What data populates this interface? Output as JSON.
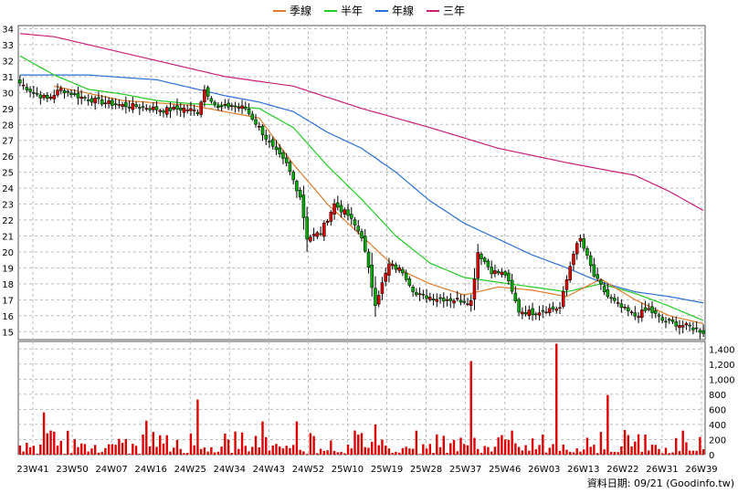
{
  "chart_data": [
    {
      "type": "candlestick",
      "legend": [
        {
          "name": "季線",
          "color": "#e07b2a"
        },
        {
          "name": "半年",
          "color": "#22cc22"
        },
        {
          "name": "年線",
          "color": "#2a6fd4"
        },
        {
          "name": "三年",
          "color": "#c8207a"
        }
      ],
      "y_ticks": [
        15,
        16,
        17,
        18,
        19,
        20,
        21,
        22,
        23,
        24,
        25,
        26,
        27,
        28,
        29,
        30,
        31,
        32,
        33,
        34
      ],
      "ylim": [
        14.5,
        34.2
      ],
      "x_labels": [
        "23W41",
        "23W50",
        "24W07",
        "24W16",
        "24W25",
        "24W34",
        "24W43",
        "24W52",
        "25W10",
        "25W19",
        "25W28",
        "25W37",
        "25W46",
        "26W03",
        "26W13",
        "26W22",
        "26W31",
        "26W39"
      ],
      "grid": true,
      "price_anchors": [
        [
          0,
          30.6
        ],
        [
          4,
          30.0
        ],
        [
          8,
          29.6
        ],
        [
          12,
          30.2
        ],
        [
          18,
          29.7
        ],
        [
          24,
          29.4
        ],
        [
          30,
          29.2
        ],
        [
          36,
          29.1
        ],
        [
          42,
          28.9
        ],
        [
          48,
          29.0
        ],
        [
          52,
          28.8
        ],
        [
          54,
          30.2
        ],
        [
          58,
          29.0
        ],
        [
          62,
          29.2
        ],
        [
          66,
          29.0
        ],
        [
          70,
          27.8
        ],
        [
          74,
          26.5
        ],
        [
          78,
          25.5
        ],
        [
          82,
          23.5
        ],
        [
          84,
          20.9
        ],
        [
          88,
          21.2
        ],
        [
          92,
          23.0
        ],
        [
          96,
          22.3
        ],
        [
          100,
          21.0
        ],
        [
          104,
          16.8
        ],
        [
          108,
          19.2
        ],
        [
          112,
          18.8
        ],
        [
          116,
          17.3
        ],
        [
          122,
          17.1
        ],
        [
          128,
          17.0
        ],
        [
          132,
          16.9
        ],
        [
          134,
          20.0
        ],
        [
          138,
          18.8
        ],
        [
          142,
          18.6
        ],
        [
          146,
          16.3
        ],
        [
          150,
          16.2
        ],
        [
          154,
          16.4
        ],
        [
          158,
          16.5
        ],
        [
          162,
          20.0
        ],
        [
          164,
          20.8
        ],
        [
          168,
          18.5
        ],
        [
          172,
          17.2
        ],
        [
          176,
          16.5
        ],
        [
          180,
          16.0
        ],
        [
          184,
          16.4
        ],
        [
          188,
          15.7
        ],
        [
          192,
          15.5
        ],
        [
          196,
          15.3
        ],
        [
          200,
          15.0
        ]
      ],
      "ma_quarter_anchors": [
        [
          10,
          30.4
        ],
        [
          30,
          29.5
        ],
        [
          50,
          29.2
        ],
        [
          70,
          28.4
        ],
        [
          80,
          25.5
        ],
        [
          90,
          23.0
        ],
        [
          100,
          21.0
        ],
        [
          110,
          19.0
        ],
        [
          120,
          18.0
        ],
        [
          130,
          17.3
        ],
        [
          140,
          17.8
        ],
        [
          150,
          17.6
        ],
        [
          160,
          17.2
        ],
        [
          170,
          18.3
        ],
        [
          180,
          17.0
        ],
        [
          190,
          16.0
        ],
        [
          200,
          15.5
        ]
      ],
      "ma_half_anchors": [
        [
          0,
          32.3
        ],
        [
          10,
          31.1
        ],
        [
          20,
          30.2
        ],
        [
          30,
          29.9
        ],
        [
          40,
          29.5
        ],
        [
          50,
          29.3
        ],
        [
          60,
          29.2
        ],
        [
          70,
          29.0
        ],
        [
          80,
          27.8
        ],
        [
          90,
          25.4
        ],
        [
          100,
          23.3
        ],
        [
          110,
          21.0
        ],
        [
          120,
          19.3
        ],
        [
          130,
          18.4
        ],
        [
          140,
          18.1
        ],
        [
          150,
          17.8
        ],
        [
          160,
          17.5
        ],
        [
          170,
          18.0
        ],
        [
          180,
          17.4
        ],
        [
          190,
          16.6
        ],
        [
          200,
          15.7
        ]
      ],
      "ma_year_anchors": [
        [
          0,
          31.1
        ],
        [
          20,
          31.1
        ],
        [
          40,
          30.8
        ],
        [
          60,
          29.8
        ],
        [
          70,
          29.4
        ],
        [
          80,
          28.8
        ],
        [
          90,
          27.5
        ],
        [
          100,
          26.5
        ],
        [
          110,
          25.0
        ],
        [
          120,
          23.2
        ],
        [
          130,
          21.8
        ],
        [
          140,
          20.8
        ],
        [
          150,
          19.8
        ],
        [
          160,
          19.0
        ],
        [
          170,
          18.1
        ],
        [
          180,
          17.5
        ],
        [
          190,
          17.2
        ],
        [
          200,
          16.8
        ]
      ],
      "ma_three_anchors": [
        [
          0,
          33.7
        ],
        [
          10,
          33.5
        ],
        [
          20,
          33.0
        ],
        [
          40,
          32.0
        ],
        [
          60,
          31.0
        ],
        [
          80,
          30.4
        ],
        [
          100,
          29.0
        ],
        [
          120,
          27.8
        ],
        [
          140,
          26.5
        ],
        [
          160,
          25.6
        ],
        [
          180,
          24.8
        ],
        [
          190,
          23.8
        ],
        [
          200,
          22.6
        ]
      ],
      "volume_y_ticks": [
        0,
        200,
        400,
        600,
        800,
        "1,000",
        "1,200",
        "1,400"
      ],
      "volume_ylim": [
        0,
        1500
      ],
      "volume_spikes": [
        [
          7,
          560
        ],
        [
          37,
          450
        ],
        [
          52,
          730
        ],
        [
          71,
          440
        ],
        [
          81,
          440
        ],
        [
          104,
          400
        ],
        [
          132,
          1240
        ],
        [
          157,
          1470
        ],
        [
          172,
          790
        ],
        [
          181,
          270
        ],
        [
          192,
          220
        ]
      ],
      "volume_base": [
        20,
        340
      ],
      "footer": "資料日期: 09/21  (Goodinfo.tw)"
    }
  ]
}
